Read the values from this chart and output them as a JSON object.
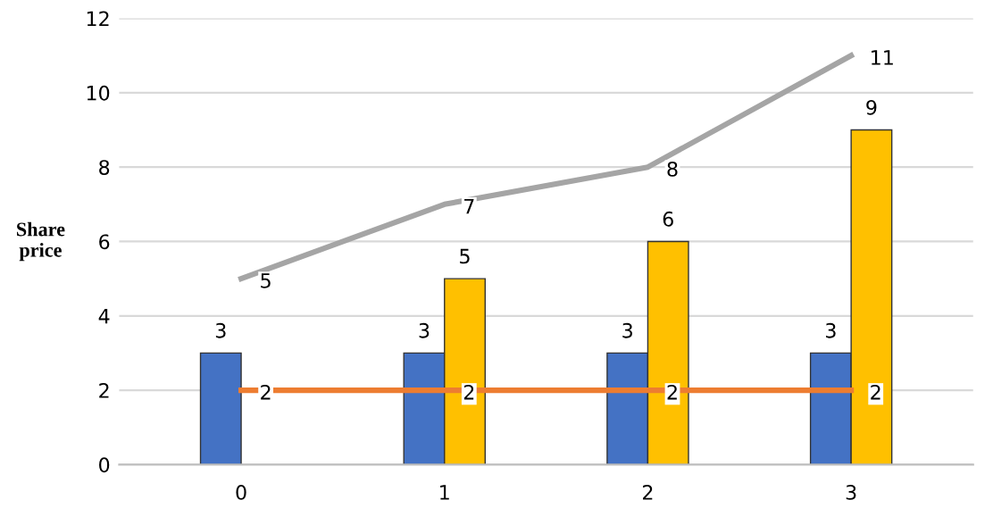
{
  "chart_data": {
    "type": "bar",
    "ylabel": "Share\nprice",
    "categories": [
      "0",
      "1",
      "2",
      "3"
    ],
    "series": [
      {
        "color": "#4472c4",
        "values": [
          3,
          3,
          3,
          3
        ]
      },
      {
        "color": "#ffc000",
        "values": [
          null,
          5,
          6,
          9
        ]
      },
      {
        "type": "line",
        "color": "#a5a5a5",
        "values": [
          5,
          7,
          8,
          11
        ]
      },
      {
        "type": "line",
        "color": "#ed7d31",
        "values": [
          2,
          2,
          2,
          2
        ]
      }
    ],
    "ylim": [
      0,
      12
    ],
    "yticks": [
      0,
      2,
      4,
      6,
      8,
      10,
      12
    ],
    "grid": "y",
    "data_labels": true,
    "marker": "none",
    "line_style": "solid"
  }
}
